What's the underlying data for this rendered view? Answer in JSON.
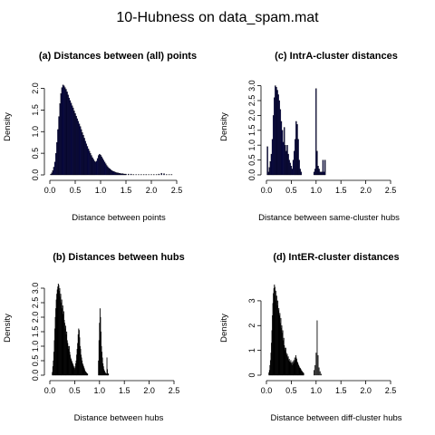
{
  "figure_title": "10-Hubness on data_spam.mat",
  "chart_data": [
    {
      "type": "histogram",
      "title": "(a) Distances between (all) points",
      "xlabel": "Distance between points",
      "ylabel": "Density",
      "xlim": [
        0,
        2.75
      ],
      "ylim": [
        0,
        2.2
      ],
      "xticks": [
        "0.0",
        "0.5",
        "1.0",
        "1.5",
        "2.0",
        "2.5"
      ],
      "xtick_values": [
        0,
        0.5,
        1.0,
        1.5,
        2.0,
        2.5
      ],
      "yticks": [
        "0.0",
        "0.5",
        "1.0",
        "1.5",
        "2.0"
      ],
      "ytick_values": [
        0,
        0.5,
        1.0,
        1.5,
        2.0
      ],
      "fill_color": "#0a0a4e",
      "bin_width": 0.02,
      "x": [
        0.02,
        0.04,
        0.06,
        0.08,
        0.1,
        0.12,
        0.14,
        0.16,
        0.18,
        0.2,
        0.22,
        0.24,
        0.26,
        0.28,
        0.3,
        0.32,
        0.34,
        0.36,
        0.38,
        0.4,
        0.42,
        0.44,
        0.46,
        0.48,
        0.5,
        0.52,
        0.54,
        0.56,
        0.58,
        0.6,
        0.62,
        0.64,
        0.66,
        0.68,
        0.7,
        0.72,
        0.74,
        0.76,
        0.78,
        0.8,
        0.82,
        0.84,
        0.86,
        0.88,
        0.9,
        0.92,
        0.94,
        0.96,
        0.98,
        1.0,
        1.02,
        1.04,
        1.06,
        1.08,
        1.1,
        1.12,
        1.14,
        1.16,
        1.18,
        1.2,
        1.22,
        1.24,
        1.26,
        1.28,
        1.3,
        1.32,
        1.34,
        1.36,
        1.38,
        1.4,
        1.42,
        1.44,
        1.46,
        1.48,
        1.5,
        1.55,
        1.6,
        1.65,
        1.7,
        1.75,
        1.8,
        1.85,
        1.9,
        1.95,
        2.0,
        2.05,
        2.1,
        2.15,
        2.2,
        2.25,
        2.3,
        2.35,
        2.4
      ],
      "values": [
        0.02,
        0.05,
        0.1,
        0.18,
        0.3,
        0.5,
        0.75,
        1.05,
        1.35,
        1.65,
        1.88,
        2.02,
        2.08,
        2.06,
        2.02,
        1.98,
        1.92,
        1.85,
        1.78,
        1.72,
        1.66,
        1.6,
        1.55,
        1.48,
        1.42,
        1.36,
        1.3,
        1.24,
        1.18,
        1.12,
        1.05,
        0.98,
        0.92,
        0.85,
        0.78,
        0.72,
        0.66,
        0.6,
        0.55,
        0.5,
        0.45,
        0.4,
        0.36,
        0.32,
        0.3,
        0.32,
        0.38,
        0.45,
        0.48,
        0.46,
        0.42,
        0.38,
        0.34,
        0.3,
        0.26,
        0.22,
        0.19,
        0.16,
        0.14,
        0.12,
        0.1,
        0.09,
        0.08,
        0.07,
        0.06,
        0.05,
        0.05,
        0.04,
        0.04,
        0.03,
        0.03,
        0.03,
        0.02,
        0.02,
        0.02,
        0.02,
        0.02,
        0.01,
        0.01,
        0.01,
        0.01,
        0.01,
        0.01,
        0.01,
        0.01,
        0.01,
        0.01,
        0.02,
        0.04,
        0.03,
        0.01,
        0.01,
        0.01
      ]
    },
    {
      "type": "histogram",
      "title": "(c) IntrA-cluster distances",
      "xlabel": "Distance between same-cluster hubs",
      "ylabel": "Density",
      "xlim": [
        0,
        2.5
      ],
      "ylim": [
        0,
        3.2
      ],
      "xticks": [
        "0.0",
        "0.5",
        "1.0",
        "1.5",
        "2.0",
        "2.5"
      ],
      "xtick_values": [
        0,
        0.5,
        1.0,
        1.5,
        2.0,
        2.5
      ],
      "yticks": [
        "0.0",
        "0.5",
        "1.0",
        "1.5",
        "2.0",
        "2.5",
        "3.0"
      ],
      "ytick_values": [
        0,
        0.5,
        1.0,
        1.5,
        2.0,
        2.5,
        3.0
      ],
      "fill_color": "#0a0a4e",
      "bin_width": 0.02,
      "x": [
        0.02,
        0.04,
        0.06,
        0.08,
        0.1,
        0.12,
        0.14,
        0.16,
        0.18,
        0.2,
        0.22,
        0.24,
        0.26,
        0.28,
        0.3,
        0.32,
        0.34,
        0.36,
        0.38,
        0.4,
        0.42,
        0.44,
        0.46,
        0.48,
        0.5,
        0.52,
        0.54,
        0.56,
        0.58,
        0.6,
        0.62,
        0.64,
        0.66,
        0.68,
        0.7,
        0.96,
        0.98,
        1.0,
        1.02,
        1.04,
        1.06,
        1.08,
        1.1,
        1.12,
        1.14,
        1.16,
        1.18
      ],
      "values": [
        0.95,
        0.1,
        0.25,
        0.45,
        0.7,
        1.2,
        2.0,
        2.6,
        3.0,
        2.95,
        2.85,
        2.7,
        2.5,
        2.2,
        1.8,
        1.5,
        1.1,
        1.6,
        1.0,
        0.8,
        1.0,
        0.7,
        0.5,
        0.4,
        0.3,
        0.2,
        0.5,
        0.8,
        1.2,
        1.8,
        1.7,
        1.2,
        0.5,
        0.2,
        0.1,
        0.1,
        0.2,
        2.9,
        0.8,
        0.3,
        0.2,
        0.1,
        0.1,
        0.1,
        0.5,
        0.1,
        0.5
      ]
    },
    {
      "type": "histogram",
      "title": "(b) Distances between hubs",
      "xlabel": "Distance between hubs",
      "ylabel": "Density",
      "xlim": [
        0,
        2.5
      ],
      "ylim": [
        0,
        3.25
      ],
      "xticks": [
        "0.0",
        "0.5",
        "1.0",
        "1.5",
        "2.0",
        "2.5"
      ],
      "xtick_values": [
        0,
        0.5,
        1.0,
        1.5,
        2.0,
        2.5
      ],
      "yticks": [
        "0.0",
        "0.5",
        "1.0",
        "1.5",
        "2.0",
        "2.5",
        "3.0"
      ],
      "ytick_values": [
        0,
        0.5,
        1.0,
        1.5,
        2.0,
        2.5,
        3.0
      ],
      "fill_color": "#000000",
      "bin_width": 0.01,
      "x": [
        0.05,
        0.06,
        0.07,
        0.08,
        0.09,
        0.1,
        0.11,
        0.12,
        0.13,
        0.14,
        0.15,
        0.16,
        0.17,
        0.18,
        0.19,
        0.2,
        0.21,
        0.22,
        0.23,
        0.24,
        0.25,
        0.26,
        0.27,
        0.28,
        0.29,
        0.3,
        0.31,
        0.32,
        0.33,
        0.34,
        0.35,
        0.36,
        0.37,
        0.38,
        0.39,
        0.4,
        0.41,
        0.42,
        0.43,
        0.44,
        0.45,
        0.46,
        0.47,
        0.48,
        0.49,
        0.5,
        0.51,
        0.52,
        0.53,
        0.54,
        0.55,
        0.56,
        0.57,
        0.58,
        0.59,
        0.6,
        0.61,
        0.62,
        0.63,
        0.64,
        0.65,
        0.66,
        0.67,
        0.68,
        0.69,
        0.7,
        0.71,
        0.72,
        0.73,
        0.74,
        0.75,
        0.76,
        0.98,
        0.99,
        1.0,
        1.01,
        1.02,
        1.03,
        1.04,
        1.05,
        1.06,
        1.07,
        1.08,
        1.09,
        1.1,
        1.11,
        1.12,
        1.13,
        1.14,
        1.15,
        1.16,
        1.17,
        1.18
      ],
      "values": [
        0.1,
        0.3,
        0.5,
        0.8,
        1.2,
        1.6,
        2.0,
        2.3,
        2.6,
        2.8,
        2.95,
        3.05,
        3.15,
        3.1,
        2.9,
        3.0,
        2.7,
        2.8,
        2.5,
        2.6,
        2.3,
        2.4,
        2.1,
        2.2,
        1.9,
        1.8,
        1.6,
        1.7,
        1.4,
        1.5,
        1.2,
        1.1,
        1.0,
        0.9,
        1.0,
        0.8,
        0.7,
        0.6,
        0.55,
        0.5,
        0.45,
        0.4,
        0.35,
        0.3,
        0.25,
        0.2,
        0.3,
        0.4,
        0.5,
        0.7,
        0.9,
        1.1,
        1.4,
        1.6,
        1.55,
        1.3,
        1.0,
        0.9,
        0.7,
        0.6,
        0.5,
        0.4,
        0.35,
        0.3,
        0.25,
        0.2,
        0.15,
        0.12,
        0.1,
        0.08,
        0.05,
        0.05,
        0.5,
        1.2,
        1.8,
        2.3,
        2.0,
        1.5,
        1.0,
        0.8,
        0.6,
        0.4,
        0.3,
        0.2,
        0.15,
        0.1,
        0.08,
        0.05,
        0.05,
        0.6,
        0.2,
        0.05,
        0.05
      ]
    },
    {
      "type": "histogram",
      "title": "(d) IntER-cluster distances",
      "xlabel": "Distance between diff-cluster hubs",
      "ylabel": "Density",
      "xlim": [
        0,
        2.5
      ],
      "ylim": [
        0,
        3.8
      ],
      "xticks": [
        "0.0",
        "0.5",
        "1.0",
        "1.5",
        "2.0",
        "2.5"
      ],
      "xtick_values": [
        0,
        0.5,
        1.0,
        1.5,
        2.0,
        2.5
      ],
      "yticks": [
        "0",
        "1",
        "2",
        "3"
      ],
      "ytick_values": [
        0,
        1,
        2,
        3
      ],
      "fill_color": "#000000",
      "bin_width": 0.01,
      "x": [
        0.05,
        0.06,
        0.07,
        0.08,
        0.09,
        0.1,
        0.11,
        0.12,
        0.13,
        0.14,
        0.15,
        0.16,
        0.17,
        0.18,
        0.19,
        0.2,
        0.21,
        0.22,
        0.23,
        0.24,
        0.25,
        0.26,
        0.27,
        0.28,
        0.29,
        0.3,
        0.31,
        0.32,
        0.33,
        0.34,
        0.35,
        0.36,
        0.37,
        0.38,
        0.39,
        0.4,
        0.41,
        0.42,
        0.43,
        0.44,
        0.45,
        0.46,
        0.47,
        0.48,
        0.49,
        0.5,
        0.51,
        0.52,
        0.53,
        0.54,
        0.55,
        0.56,
        0.57,
        0.58,
        0.59,
        0.6,
        0.61,
        0.62,
        0.63,
        0.64,
        0.65,
        0.66,
        0.67,
        0.68,
        0.69,
        0.7,
        0.71,
        0.72,
        0.73,
        0.74,
        0.75,
        0.96,
        0.98,
        1.0,
        1.02,
        1.04,
        1.06,
        1.08,
        1.1
      ],
      "values": [
        0.1,
        0.2,
        0.4,
        0.6,
        0.9,
        1.3,
        1.8,
        2.4,
        2.9,
        3.3,
        3.5,
        3.65,
        3.55,
        3.2,
        3.4,
        3.0,
        3.2,
        2.8,
        3.0,
        2.6,
        2.7,
        2.4,
        2.5,
        2.1,
        2.3,
        1.9,
        2.0,
        1.7,
        1.8,
        1.4,
        1.5,
        1.2,
        1.1,
        1.0,
        1.1,
        0.9,
        0.8,
        0.85,
        0.7,
        0.75,
        0.6,
        0.65,
        0.55,
        0.5,
        0.6,
        0.45,
        0.5,
        0.4,
        0.55,
        0.45,
        0.6,
        0.5,
        0.7,
        0.6,
        0.8,
        0.7,
        0.65,
        0.55,
        0.5,
        0.45,
        0.4,
        0.35,
        0.3,
        0.28,
        0.25,
        0.2,
        0.18,
        0.15,
        0.12,
        0.1,
        0.08,
        0.2,
        0.4,
        0.9,
        2.2,
        0.8,
        0.3,
        0.15,
        0.05
      ]
    }
  ]
}
